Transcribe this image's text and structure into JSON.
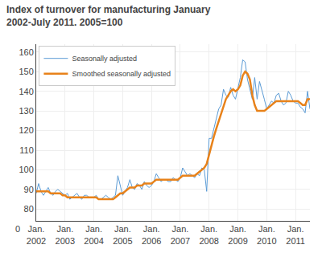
{
  "chart_data": {
    "type": "line",
    "title": "Index of turnover for manufacturing January 2002-July 2011. 2005=100",
    "categories": [
      "Jan.\n2002",
      null,
      null,
      null,
      null,
      null,
      null,
      null,
      null,
      null,
      null,
      null,
      "Jan.\n2003",
      null,
      null,
      null,
      null,
      null,
      null,
      null,
      null,
      null,
      null,
      null,
      "Jan.\n2004",
      null,
      null,
      null,
      null,
      null,
      null,
      null,
      null,
      null,
      null,
      null,
      "Jan.\n2005",
      null,
      null,
      null,
      null,
      null,
      null,
      null,
      null,
      null,
      null,
      null,
      "Jan.\n2006",
      null,
      null,
      null,
      null,
      null,
      null,
      null,
      null,
      null,
      null,
      null,
      "Jan.\n2007",
      null,
      null,
      null,
      null,
      null,
      null,
      null,
      null,
      null,
      null,
      null,
      "Jan.\n2008",
      null,
      null,
      null,
      null,
      null,
      null,
      null,
      null,
      null,
      null,
      null,
      "Jan.\n2009",
      null,
      null,
      null,
      null,
      null,
      null,
      null,
      null,
      null,
      null,
      null,
      "Jan.\n2010",
      null,
      null,
      null,
      null,
      null,
      null,
      null,
      null,
      null,
      null,
      null,
      "Jan.\n2011",
      null,
      null,
      null,
      null,
      null,
      null
    ],
    "series": [
      {
        "name": "Seasonally adjusted",
        "color": "#5B9BD5",
        "values": [
          88,
          93,
          89,
          87,
          89,
          91,
          88,
          87,
          89,
          90,
          89,
          88,
          87,
          88,
          85,
          86,
          87,
          88,
          86,
          85,
          87,
          87,
          86,
          86,
          86,
          87,
          85,
          85,
          86,
          87,
          86,
          85,
          86,
          87,
          97,
          92,
          87,
          89,
          91,
          95,
          91,
          90,
          93,
          92,
          90,
          94,
          92,
          91,
          92,
          94,
          98,
          96,
          94,
          95,
          95,
          94,
          94,
          96,
          95,
          94,
          96,
          101,
          99,
          97,
          98,
          97,
          96,
          98,
          97,
          101,
          100,
          89,
          116,
          116,
          121,
          126,
          131,
          133,
          141,
          138,
          137,
          142,
          138,
          136,
          141,
          147,
          156,
          155,
          146,
          141,
          136,
          147,
          136,
          145,
          141,
          136,
          131,
          133,
          135,
          134,
          138,
          139,
          135,
          133,
          134,
          140,
          138,
          135,
          134,
          134,
          132,
          131,
          129,
          140,
          131
        ]
      },
      {
        "name": "Smoothed seasonally adjusted",
        "color": "#E8821A",
        "values": [
          89,
          89,
          89,
          89,
          89,
          89,
          88,
          88,
          88,
          88,
          88,
          87,
          87,
          86,
          86,
          86,
          86,
          86,
          86,
          86,
          86,
          86,
          86,
          86,
          86,
          86,
          85,
          85,
          85,
          85,
          85,
          85,
          85,
          86,
          87,
          88,
          88,
          89,
          90,
          91,
          91,
          91,
          92,
          92,
          92,
          93,
          93,
          93,
          93,
          94,
          95,
          95,
          95,
          95,
          95,
          95,
          95,
          95,
          95,
          95,
          96,
          97,
          97,
          97,
          97,
          97,
          97,
          98,
          99,
          100,
          101,
          103,
          108,
          113,
          117,
          121,
          125,
          129,
          133,
          136,
          138,
          140,
          141,
          140,
          141,
          143,
          148,
          150,
          149,
          146,
          138,
          133,
          130,
          130,
          130,
          130,
          131,
          132,
          133,
          134,
          135,
          135,
          135,
          135,
          135,
          135,
          135,
          135,
          135,
          135,
          134,
          133,
          133,
          136,
          136
        ]
      }
    ],
    "ylim": [
      74,
      164
    ],
    "yticks": [
      80,
      90,
      100,
      110,
      120,
      130,
      140,
      150,
      160
    ],
    "grid": true,
    "legend": "upper left",
    "annotations": [
      "0"
    ]
  }
}
